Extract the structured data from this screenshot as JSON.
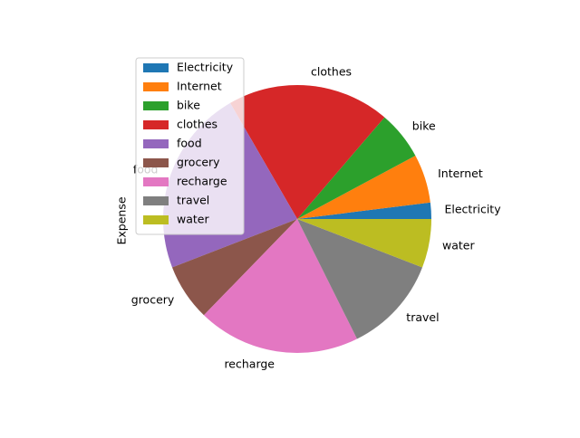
{
  "chart_data": {
    "type": "pie",
    "ylabel": "Expense",
    "categories": [
      "Electricity",
      "Internet",
      "bike",
      "clothes",
      "food",
      "grocery",
      "recharge",
      "travel",
      "water"
    ],
    "values": [
      2,
      6,
      6,
      20,
      23,
      7,
      20,
      12,
      6
    ],
    "colors": [
      "#1f77b4",
      "#ff7f0e",
      "#2ca02c",
      "#d62728",
      "#9467bd",
      "#8c564b",
      "#e377c2",
      "#7f7f7f",
      "#bcbd22"
    ],
    "start_angle": 0,
    "direction": "counterclockwise",
    "legend": {
      "placement": "upper-left",
      "entries": [
        "Electricity",
        "Internet",
        "bike",
        "clothes",
        "food",
        "grocery",
        "recharge",
        "travel",
        "water"
      ]
    }
  }
}
